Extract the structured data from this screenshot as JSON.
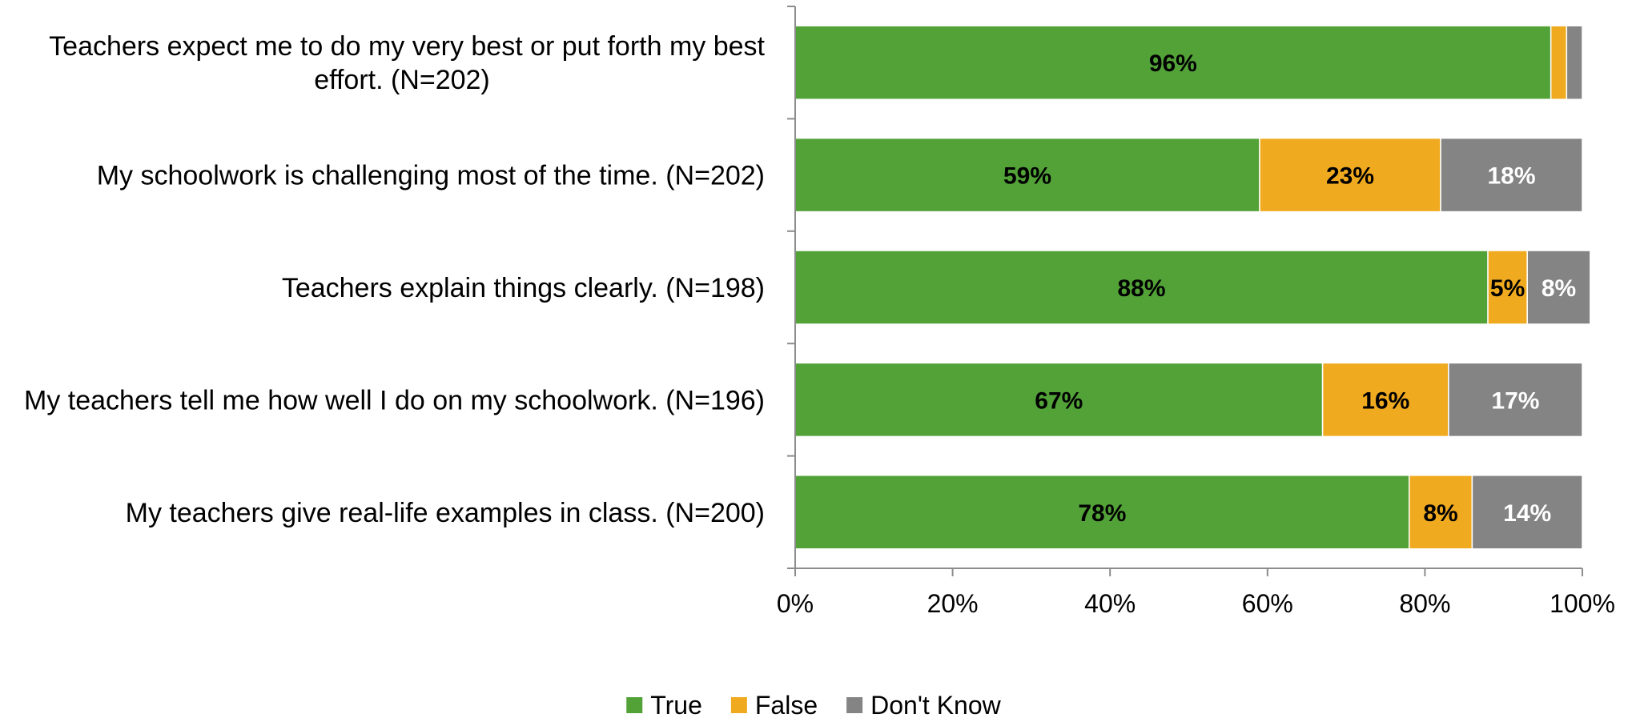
{
  "chart_data": {
    "type": "bar",
    "orientation": "horizontal",
    "stacked": true,
    "categories": [
      [
        "Teachers expect me to do my very best or put forth my best",
        "effort. (N=202)"
      ],
      [
        "My schoolwork is challenging most of the time. (N=202)"
      ],
      [
        "Teachers explain things clearly. (N=198)"
      ],
      [
        "My teachers tell me how well I do on my schoolwork. (N=196)"
      ],
      [
        "My teachers give real-life examples in class. (N=200)"
      ]
    ],
    "series": [
      {
        "name": "True",
        "color": "#52a238",
        "label_color": "#000000",
        "values": [
          96,
          59,
          88,
          67,
          78
        ],
        "labels": [
          "96%",
          "59%",
          "88%",
          "67%",
          "78%"
        ]
      },
      {
        "name": "False",
        "color": "#f0aa1f",
        "label_color": "#000000",
        "values": [
          2,
          23,
          5,
          16,
          8
        ],
        "labels": [
          "",
          "23%",
          "5%",
          "16%",
          "8%"
        ]
      },
      {
        "name": "Don't Know",
        "color": "#848484",
        "label_color": "#ffffff",
        "values": [
          2,
          18,
          8,
          17,
          14
        ],
        "labels": [
          "",
          "18%",
          "8%",
          "17%",
          "14%"
        ]
      }
    ],
    "x_ticks": [
      "0%",
      "20%",
      "40%",
      "60%",
      "80%",
      "100%"
    ],
    "xlim": [
      0,
      100
    ],
    "grid": false,
    "legend_position": "bottom-center"
  }
}
